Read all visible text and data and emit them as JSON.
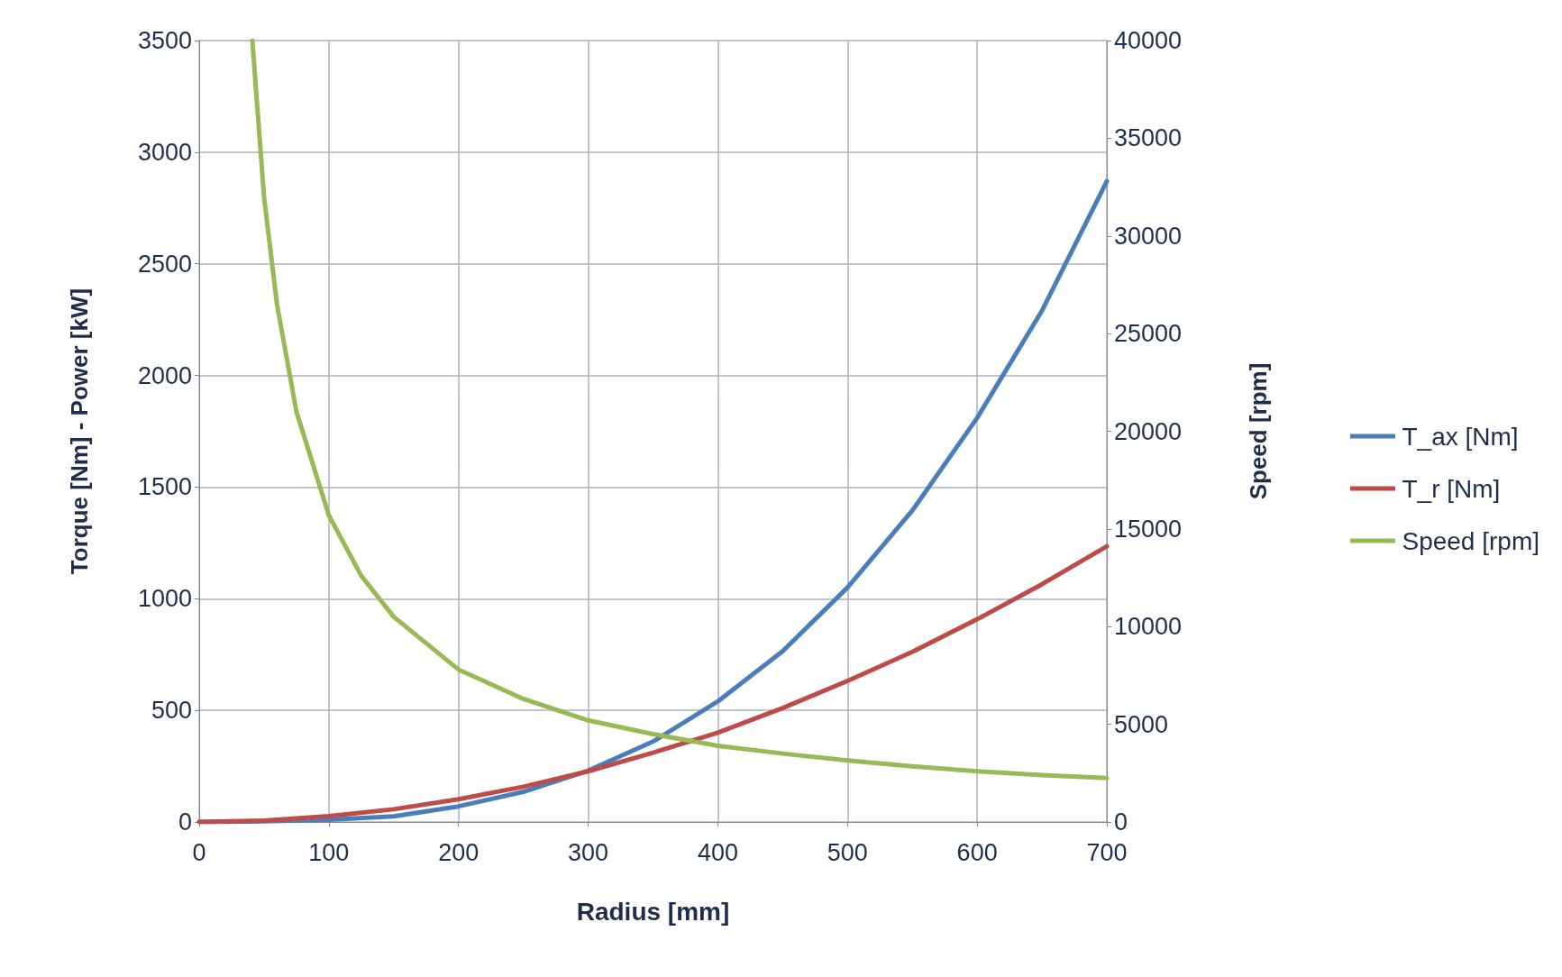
{
  "chart_data": {
    "type": "line",
    "xlabel": "Radius [mm]",
    "ylabel": "Torque [Nm] - Power [kW]",
    "y2label": "Speed [rpm]",
    "xlim": [
      0,
      700
    ],
    "xticks": [
      0,
      100,
      200,
      300,
      400,
      500,
      600,
      700
    ],
    "ylim": [
      0,
      3500
    ],
    "yticks": [
      0,
      500,
      1000,
      1500,
      2000,
      2500,
      3000,
      3500
    ],
    "y2lim": [
      0,
      40000
    ],
    "y2ticks": [
      0,
      5000,
      10000,
      15000,
      20000,
      25000,
      30000,
      35000,
      40000
    ],
    "grid": true,
    "legend": "right",
    "marker": "none",
    "line_style": "solid",
    "series": [
      {
        "name": "T_ax [Nm]",
        "color": "#4a7ebb",
        "x": [
          0,
          50,
          100,
          150,
          200,
          250,
          300,
          350,
          400,
          450,
          500,
          550,
          600,
          650,
          700
        ],
        "values": [
          0,
          3,
          10,
          25,
          70,
          135,
          230,
          360,
          540,
          765,
          1050,
          1395,
          1810,
          2290,
          2870
        ]
      },
      {
        "name": "T_r [Nm]",
        "color": "#be4b48",
        "x": [
          0,
          50,
          100,
          150,
          200,
          250,
          300,
          350,
          400,
          450,
          500,
          550,
          600,
          650,
          700
        ],
        "values": [
          0,
          6,
          26,
          57,
          102,
          158,
          227,
          310,
          400,
          510,
          632,
          762,
          908,
          1065,
          1235
        ]
      },
      {
        "name": "Speed [rpm]",
        "color": "#98b954",
        "axis": "y2",
        "x": [
          41,
          50,
          60,
          75,
          100,
          125,
          150,
          200,
          250,
          300,
          350,
          400,
          450,
          500,
          550,
          600,
          650,
          700
        ],
        "values": [
          40000,
          32000,
          26500,
          21000,
          15700,
          12600,
          10500,
          7800,
          6300,
          5200,
          4500,
          3900,
          3500,
          3150,
          2850,
          2600,
          2400,
          2250
        ]
      }
    ]
  }
}
